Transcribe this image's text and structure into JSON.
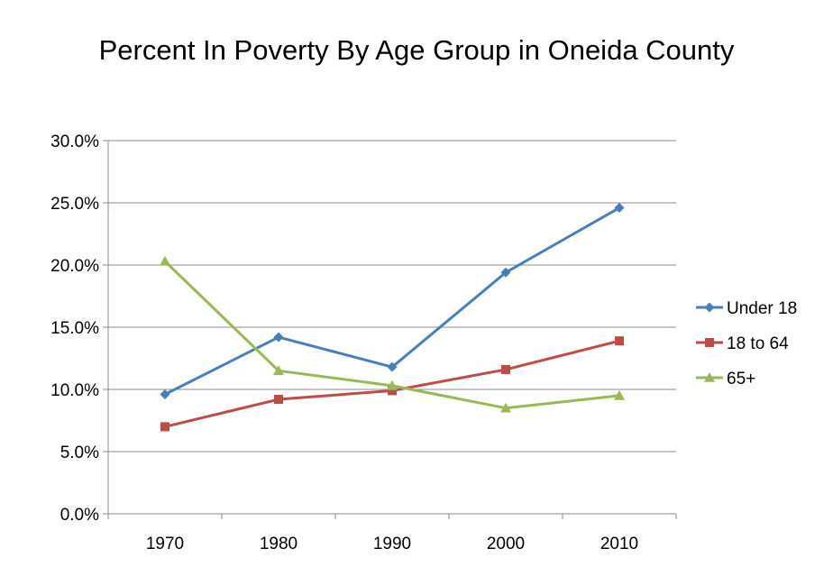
{
  "chart_data": {
    "type": "line",
    "title": "Percent In Poverty By Age Group in Oneida County",
    "xlabel": "",
    "ylabel": "",
    "categories": [
      "1970",
      "1980",
      "1990",
      "2000",
      "2010"
    ],
    "ylim": [
      0,
      30
    ],
    "yticks": [
      "0.0%",
      "5.0%",
      "10.0%",
      "15.0%",
      "20.0%",
      "25.0%",
      "30.0%"
    ],
    "ytick_values": [
      0,
      5,
      10,
      15,
      20,
      25,
      30
    ],
    "grid": "horizontal",
    "legend_position": "right",
    "series": [
      {
        "name": "Under 18",
        "color": "#4A7EBB",
        "marker": "diamond",
        "values": [
          9.6,
          14.2,
          11.8,
          19.4,
          24.6
        ]
      },
      {
        "name": "18 to 64",
        "color": "#BE4B48",
        "marker": "square",
        "values": [
          7.0,
          9.2,
          9.9,
          11.6,
          13.9
        ]
      },
      {
        "name": "65+",
        "color": "#98B954",
        "marker": "triangle",
        "values": [
          20.3,
          11.5,
          10.3,
          8.5,
          9.5
        ]
      }
    ]
  }
}
